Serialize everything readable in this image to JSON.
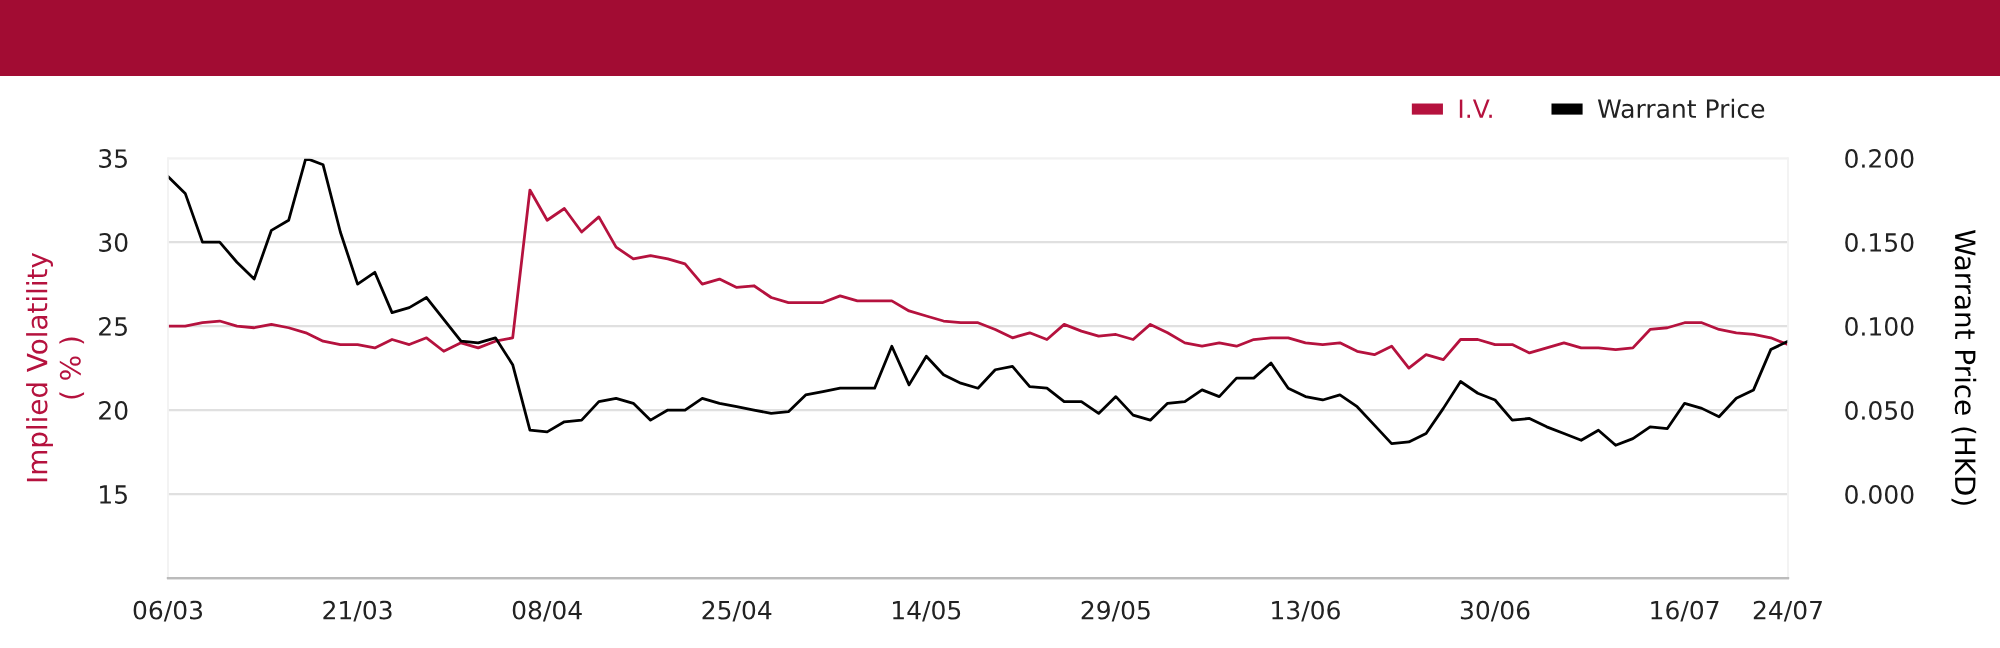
{
  "chart_data": {
    "type": "line",
    "categories": [
      "06/03",
      null,
      null,
      null,
      null,
      null,
      null,
      null,
      null,
      null,
      null,
      "21/03",
      null,
      null,
      null,
      null,
      null,
      null,
      null,
      null,
      null,
      null,
      "08/04",
      null,
      null,
      null,
      null,
      null,
      null,
      null,
      null,
      null,
      null,
      "25/04",
      null,
      null,
      null,
      null,
      null,
      null,
      null,
      null,
      null,
      null,
      "14/05",
      null,
      null,
      null,
      null,
      null,
      null,
      null,
      null,
      null,
      null,
      "29/05",
      null,
      null,
      null,
      null,
      null,
      null,
      null,
      null,
      null,
      null,
      "13/06",
      null,
      null,
      null,
      null,
      null,
      null,
      null,
      null,
      null,
      null,
      "30/06",
      null,
      null,
      null,
      null,
      null,
      null,
      null,
      null,
      null,
      null,
      "16/07",
      null,
      null,
      null,
      null,
      null,
      "24/07"
    ],
    "ylabel": "Implied Volatility\n( % )",
    "y2label": "Warrant Price (HKD)",
    "ylim": [
      10,
      35
    ],
    "yticks": [
      {
        "value": 10,
        "label": null
      },
      15,
      20,
      25,
      30,
      35
    ],
    "y2lim": [
      -0.05,
      0.2
    ],
    "y2ticks": [
      {
        "value": 0,
        "label": "0.000"
      },
      {
        "value": 0.05,
        "label": "0.050"
      },
      {
        "value": 0.1,
        "label": "0.100"
      },
      {
        "value": 0.15,
        "label": "0.150"
      },
      {
        "value": 0.2,
        "label": "0.200"
      }
    ],
    "grid": "y",
    "legend": "top right",
    "marker": "none",
    "line_style": "solid",
    "series": [
      {
        "name": "I.V.",
        "color": "#b5123e",
        "values": [
          25.0,
          25.0,
          25.2,
          25.3,
          25.0,
          24.9,
          25.1,
          24.9,
          24.6,
          24.1,
          23.9,
          23.9,
          23.7,
          24.2,
          23.9,
          24.3,
          23.5,
          24.0,
          23.7,
          24.1,
          24.3,
          33.1,
          31.3,
          32.0,
          30.6,
          31.5,
          29.7,
          29.0,
          29.2,
          29.0,
          28.7,
          27.5,
          27.8,
          27.3,
          27.4,
          26.7,
          26.4,
          26.4,
          26.4,
          26.8,
          26.5,
          26.5,
          26.5,
          25.9,
          25.6,
          25.3,
          25.2,
          25.2,
          24.8,
          24.3,
          24.6,
          24.2,
          25.1,
          24.7,
          24.4,
          24.5,
          24.2,
          25.1,
          24.6,
          24.0,
          23.8,
          24.0,
          23.8,
          24.2,
          24.3,
          24.3,
          24.0,
          23.9,
          24.0,
          23.5,
          23.3,
          23.8,
          22.5,
          23.3,
          23.0,
          24.2,
          24.2,
          23.9,
          23.9,
          23.4,
          23.7,
          24.0,
          23.7,
          23.7,
          23.6,
          23.7,
          24.8,
          24.9,
          25.2,
          25.2,
          24.8,
          24.6,
          24.5,
          24.3,
          23.9
        ]
      },
      {
        "name": "Warrant Price",
        "color": "#000000",
        "axis": "y2",
        "values": [
          0.189,
          0.179,
          0.15,
          0.15,
          0.138,
          0.128,
          0.157,
          0.163,
          0.2,
          0.196,
          0.156,
          0.125,
          0.132,
          0.108,
          0.111,
          0.117,
          0.104,
          0.091,
          0.09,
          0.093,
          0.077,
          0.038,
          0.037,
          0.043,
          0.044,
          0.055,
          0.057,
          0.054,
          0.044,
          0.05,
          0.05,
          0.057,
          0.054,
          0.052,
          0.05,
          0.048,
          0.049,
          0.059,
          0.061,
          0.063,
          0.063,
          0.063,
          0.088,
          0.065,
          0.082,
          0.071,
          0.066,
          0.063,
          0.074,
          0.076,
          0.064,
          0.063,
          0.055,
          0.055,
          0.048,
          0.058,
          0.047,
          0.044,
          0.054,
          0.055,
          0.062,
          0.058,
          0.069,
          0.069,
          0.078,
          0.063,
          0.058,
          0.056,
          0.059,
          0.052,
          0.041,
          0.03,
          0.031,
          0.036,
          0.051,
          0.067,
          0.06,
          0.056,
          0.044,
          0.045,
          0.04,
          0.036,
          0.032,
          0.038,
          0.029,
          0.033,
          0.04,
          0.039,
          0.054,
          0.051,
          0.046,
          0.057,
          0.062,
          0.086,
          0.091
        ]
      }
    ]
  }
}
